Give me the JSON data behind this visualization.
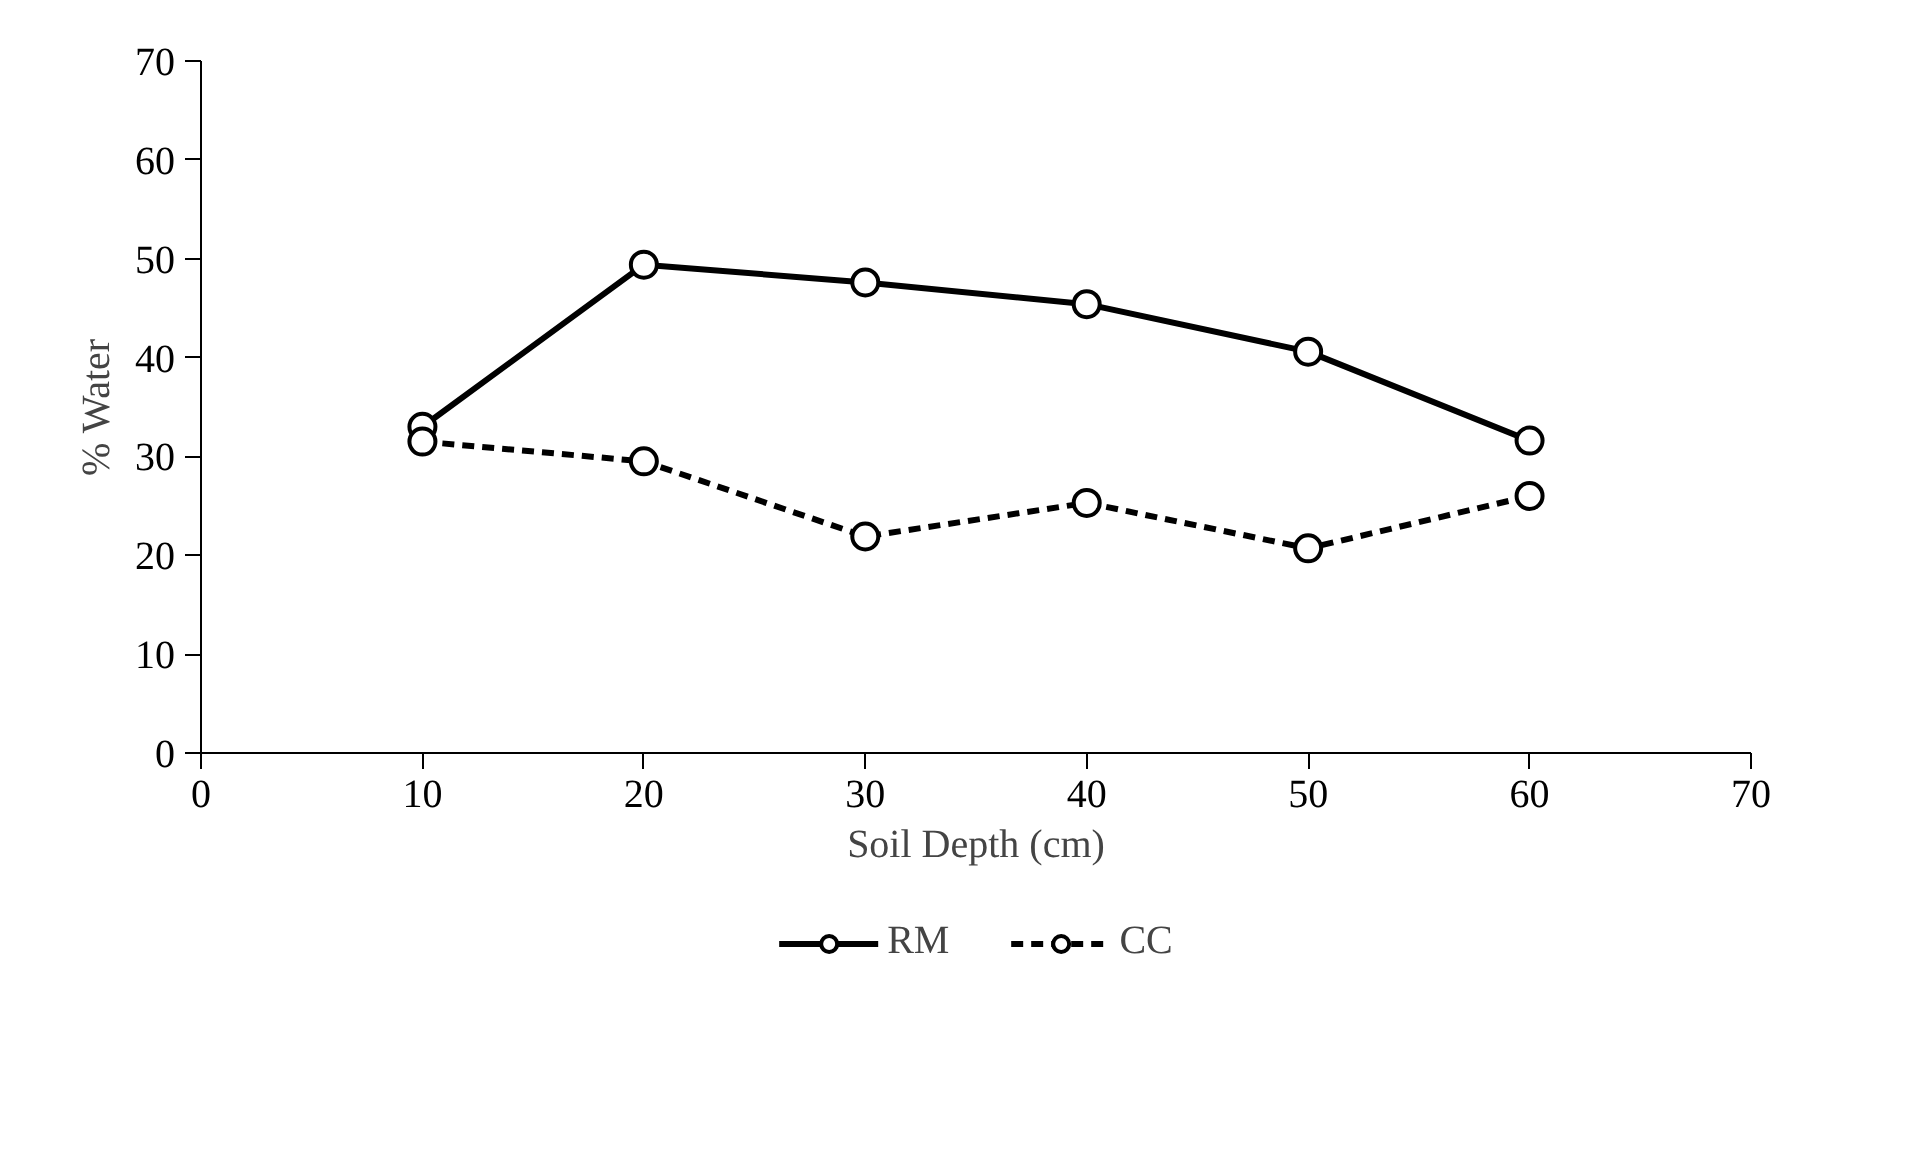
{
  "chart_data": {
    "type": "line",
    "xlabel": "Soil Depth (cm)",
    "ylabel": "% Water",
    "x": [
      10,
      20,
      30,
      40,
      50,
      60
    ],
    "series": [
      {
        "name": "RM",
        "color": "#000000",
        "line_style": "solid",
        "values": [
          33.0,
          49.4,
          47.6,
          45.4,
          40.6,
          31.6
        ]
      },
      {
        "name": "CC",
        "color": "#000000",
        "line_style": "dashed",
        "values": [
          31.5,
          29.5,
          21.9,
          25.3,
          20.7,
          26.0
        ]
      }
    ],
    "xlim": [
      0,
      70
    ],
    "xticks": [
      0,
      10,
      20,
      30,
      40,
      50,
      60,
      70
    ],
    "ylim": [
      0,
      70
    ],
    "yticks": [
      0,
      10,
      20,
      30,
      40,
      50,
      60,
      70
    ],
    "grid": false,
    "legend": "bottom",
    "marker": "circle"
  }
}
